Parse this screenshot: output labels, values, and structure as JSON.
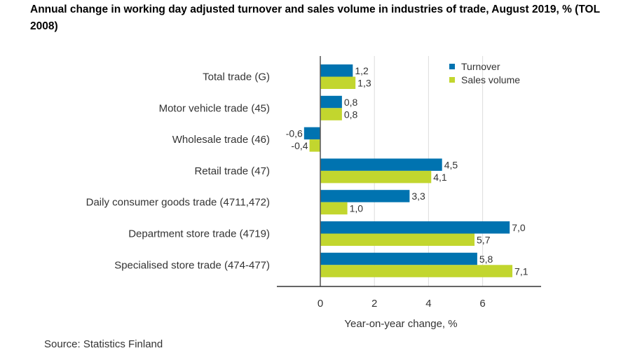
{
  "chart_data": {
    "type": "bar",
    "orientation": "horizontal",
    "title": "Annual change in working day adjusted turnover and sales volume in industries of trade, August 2019, % (TOL 2008)",
    "categories": [
      "Total trade (G)",
      "Motor vehicle trade (45)",
      "Wholesale trade (46)",
      "Retail trade (47)",
      "Daily consumer goods trade (4711,472)",
      "Department store trade (4719)",
      "Specialised store trade (474-477)"
    ],
    "series": [
      {
        "name": "Turnover",
        "color": "#0073b0",
        "values": [
          1.2,
          0.8,
          -0.6,
          4.5,
          3.3,
          7.0,
          5.8
        ],
        "labels": [
          "1,2",
          "0,8",
          "-0,6",
          "4,5",
          "3,3",
          "7,0",
          "5,8"
        ]
      },
      {
        "name": "Sales volume",
        "color": "#c2d62e",
        "values": [
          1.3,
          0.8,
          -0.4,
          4.1,
          1.0,
          5.7,
          7.1
        ],
        "labels": [
          "1,3",
          "0,8",
          "-0,4",
          "4,1",
          "1,0",
          "5,7",
          "7,1"
        ]
      }
    ],
    "xlabel": "Year-on-year change, %",
    "ylabel": "",
    "xlim": [
      -1.6,
      8.1
    ],
    "xticks": [
      0,
      2,
      4,
      6
    ],
    "xtick_labels": [
      "0",
      "2",
      "4",
      "6"
    ],
    "grid": true,
    "legend_position": "top-right",
    "source": "Source: Statistics Finland"
  }
}
